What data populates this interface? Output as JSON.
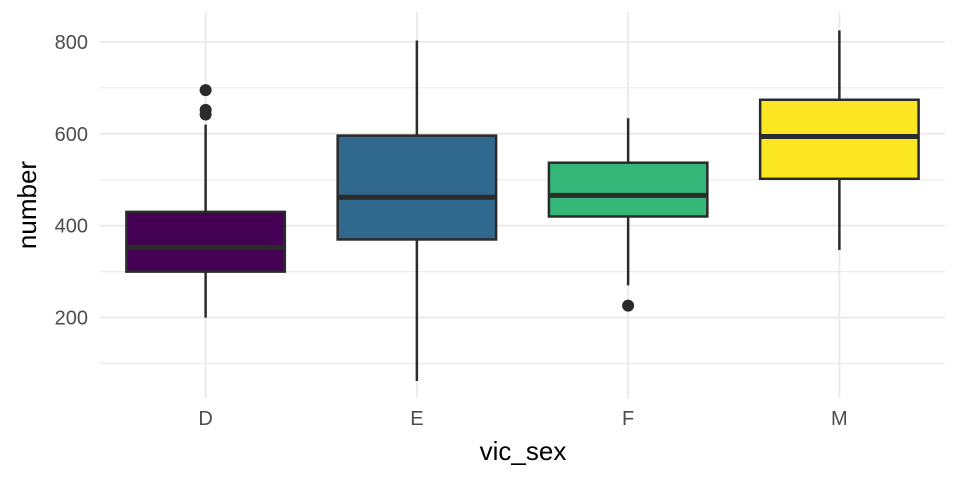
{
  "chart_data": {
    "type": "boxplot",
    "xlabel": "vic_sex",
    "ylabel": "number",
    "categories": [
      "D",
      "E",
      "F",
      "M"
    ],
    "y_ticks": [
      200,
      400,
      600,
      800
    ],
    "ylim": [
      25,
      865
    ],
    "grid": true,
    "legend": "none",
    "boxes": [
      {
        "category": "D",
        "color": "#440154",
        "whisker_low": 200,
        "q1": 300,
        "median": 353,
        "q3": 430,
        "whisker_high": 620,
        "outliers": [
          642,
          652,
          695
        ]
      },
      {
        "category": "E",
        "color": "#31688E",
        "whisker_low": 62,
        "q1": 370,
        "median": 462,
        "q3": 596,
        "whisker_high": 803,
        "outliers": []
      },
      {
        "category": "F",
        "color": "#35B779",
        "whisker_low": 270,
        "q1": 420,
        "median": 466,
        "q3": 537,
        "whisker_high": 634,
        "outliers": [
          226
        ]
      },
      {
        "category": "M",
        "color": "#FDE725",
        "whisker_low": 347,
        "q1": 502,
        "median": 594,
        "q3": 674,
        "whisker_high": 825,
        "outliers": []
      }
    ]
  }
}
